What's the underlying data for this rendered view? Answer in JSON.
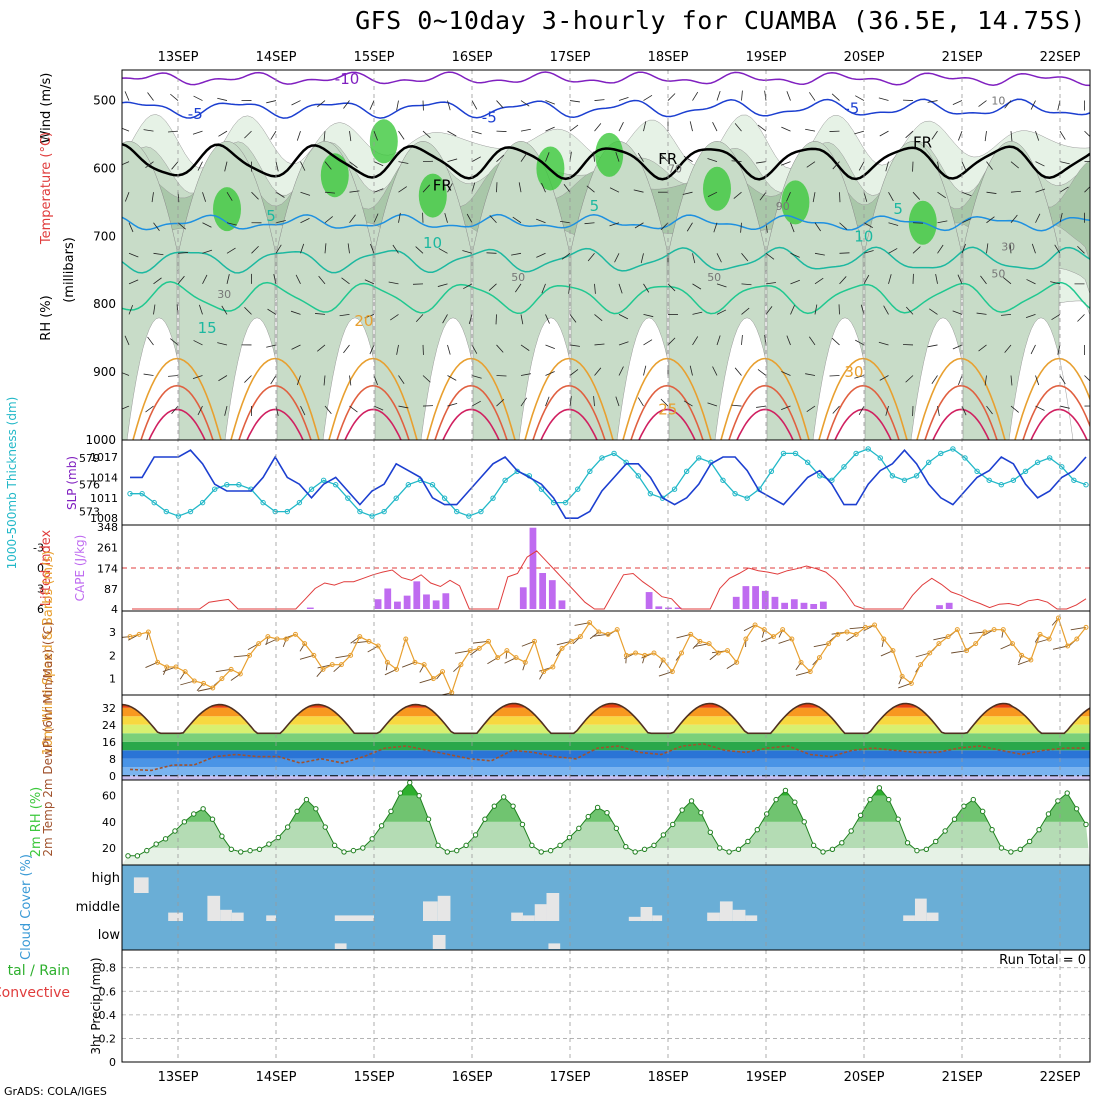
{
  "title": "GFS 0~10day 3-hourly for CUAMBA (36.5E, 14.75S)",
  "footer": "GrADS: COLA/IGES",
  "dates": [
    "13SEP",
    "14SEP",
    "15SEP",
    "16SEP",
    "17SEP",
    "18SEP",
    "19SEP",
    "20SEP",
    "21SEP",
    "22SEP"
  ],
  "colors": {
    "rh_green": "#3cc83c",
    "dewpt_brown": "#a0522d",
    "cape_purple": "#bf6bf0",
    "lifted_red": "#e03c3c",
    "thick_cyan": "#22b8c8",
    "slp_blue": "#1c3fd0",
    "wind_orange": "#e8a030",
    "cloud_bg": "#6aaed6"
  },
  "chart_data": [
    {
      "type": "heatmap",
      "name": "upper-air",
      "ylabel_parts": [
        "Wind (m/s)",
        "Temperature (°C)",
        "RH (%)",
        "(millibars)"
      ],
      "yticks": [
        500,
        600,
        700,
        800,
        900,
        1000
      ],
      "ylim": [
        455,
        1000
      ],
      "temp_labels": [
        {
          "text": "-10",
          "x": 1.6,
          "p": 468
        },
        {
          "text": "-5",
          "x": 0.1,
          "p": 520
        },
        {
          "text": "-5",
          "x": 3.1,
          "p": 525
        },
        {
          "text": "-5",
          "x": 6.8,
          "p": 512
        },
        {
          "text": "FR",
          "x": 2.6,
          "p": 625
        },
        {
          "text": "FR",
          "x": 4.9,
          "p": 586
        },
        {
          "text": "FR",
          "x": 7.5,
          "p": 562
        },
        {
          "text": "5",
          "x": 0.9,
          "p": 670
        },
        {
          "text": "5",
          "x": 4.2,
          "p": 655
        },
        {
          "text": "5",
          "x": 7.3,
          "p": 660
        },
        {
          "text": "10",
          "x": 2.5,
          "p": 710
        },
        {
          "text": "10",
          "x": 6.9,
          "p": 700
        },
        {
          "text": "15",
          "x": 0.2,
          "p": 835
        },
        {
          "text": "20",
          "x": 1.8,
          "p": 825
        },
        {
          "text": "25",
          "x": 4.9,
          "p": 955
        },
        {
          "text": "30",
          "x": 6.8,
          "p": 900
        }
      ],
      "rh_labels": [
        {
          "text": "10",
          "x": 8.3,
          "p": 500
        },
        {
          "text": "30",
          "x": 0.4,
          "p": 785
        },
        {
          "text": "30",
          "x": 8.4,
          "p": 715
        },
        {
          "text": "50",
          "x": 3.4,
          "p": 760
        },
        {
          "text": "50",
          "x": 5.4,
          "p": 760
        },
        {
          "text": "50",
          "x": 8.3,
          "p": 755
        },
        {
          "text": "70",
          "x": 5.0,
          "p": 600
        },
        {
          "text": "90",
          "x": 6.1,
          "p": 655
        }
      ]
    },
    {
      "type": "line",
      "name": "thickness-slp",
      "y_left_label": "1000-500mb Thickness (dm)",
      "y_right_label": "SLP (mb)",
      "left_ticks": [
        573,
        576,
        579
      ],
      "right_ticks": [
        1008,
        1011,
        1014,
        1017
      ],
      "left_ylim": [
        571.5,
        581
      ],
      "right_ylim": [
        1007,
        1019.5
      ],
      "series": [
        {
          "values_key": "thickness",
          "axis": "left"
        },
        {
          "values_key": "slp",
          "axis": "right"
        }
      ],
      "thickness": [
        575,
        575,
        574,
        573,
        572.5,
        573,
        574,
        575.5,
        576,
        576,
        575.5,
        574,
        573,
        573,
        574,
        575.5,
        576.5,
        576,
        574.5,
        573,
        572.5,
        573,
        574.5,
        576,
        576.5,
        576,
        574.5,
        573,
        572.5,
        573,
        574.5,
        576.5,
        577.5,
        577,
        575.5,
        574,
        574,
        575.5,
        577.5,
        579,
        579.5,
        578.5,
        577,
        575,
        574.5,
        575.5,
        577.5,
        579,
        578.5,
        576.5,
        575,
        574.5,
        575.5,
        577.5,
        579.5,
        579.5,
        578.5,
        577,
        576.5,
        578,
        579.5,
        580,
        579,
        577,
        576.5,
        577,
        578.5,
        579.5,
        580,
        579,
        577.5,
        576.5,
        576,
        576.5,
        577.5,
        578.5,
        579,
        578,
        576.5,
        576
      ],
      "slp": [
        1014,
        1014,
        1017,
        1017,
        1017,
        1018,
        1016,
        1013,
        1012,
        1012,
        1012,
        1014,
        1017,
        1014,
        1013,
        1011,
        1013,
        1014,
        1012,
        1010,
        1012,
        1013,
        1016,
        1015,
        1014,
        1011,
        1010,
        1010,
        1012,
        1014,
        1016,
        1017,
        1015,
        1014,
        1013,
        1011,
        1008,
        1008,
        1009,
        1012,
        1014,
        1016,
        1016,
        1014,
        1011,
        1010,
        1011,
        1013,
        1016,
        1017,
        1017,
        1015,
        1012,
        1011,
        1010,
        1012,
        1014,
        1015,
        1013,
        1010,
        1010,
        1013,
        1015,
        1016,
        1018,
        1016,
        1013,
        1011,
        1010,
        1012,
        1014,
        1015,
        1017,
        1016,
        1013,
        1011,
        1012,
        1014,
        1015,
        1017
      ]
    },
    {
      "type": "bar",
      "name": "lifted-cape",
      "y_left_label": "Lifted Index",
      "y_right_label": "CAPE (J/kg)",
      "left_ticks": [
        "-3",
        "0",
        "3",
        "6"
      ],
      "left_tick_values": [
        -3,
        0,
        3,
        6
      ],
      "right_ticks": [
        "4",
        "87",
        "174",
        "261",
        "348"
      ],
      "right_tick_values": [
        4,
        87,
        174,
        261,
        348
      ],
      "left_ylim": [
        6,
        -6
      ],
      "right_ylim": [
        4,
        348
      ],
      "lifted": [
        6,
        6,
        6,
        6,
        6,
        6,
        6,
        6,
        5,
        4.8,
        4.6,
        6,
        6,
        6,
        6,
        6,
        6,
        6,
        4.5,
        3,
        2.2,
        2.5,
        2,
        2,
        1.5,
        1,
        0.6,
        0.3,
        1.4,
        1.8,
        1,
        2.2,
        2.7,
        1.8,
        2.6,
        6,
        6,
        6,
        6,
        1.3,
        0.8,
        -1.6,
        -2.5,
        -1,
        0.5,
        2,
        3.5,
        5,
        6,
        6,
        3.5,
        1,
        0.8,
        2,
        3,
        4.2,
        4.5,
        6,
        6,
        6,
        6,
        3,
        1.5,
        0.8,
        0,
        0.4,
        0.6,
        0.9,
        0.4,
        0.1,
        -0.3,
        0.1,
        0.6,
        1.8,
        3.5,
        5.5,
        6,
        6,
        6,
        6,
        6,
        4,
        2.5,
        1.5,
        2.4,
        3.5,
        4,
        4.7,
        5.2,
        5.8,
        5.3,
        5.2,
        5.5,
        4.8,
        4.6,
        5,
        6,
        6,
        5.4,
        4.5
      ],
      "cape": [
        4,
        4,
        4,
        4,
        4,
        4,
        4,
        4,
        4,
        4,
        4,
        4,
        4,
        4,
        4,
        4,
        4,
        4,
        4,
        10,
        4,
        4,
        4,
        4,
        4,
        4,
        45,
        90,
        35,
        60,
        120,
        65,
        40,
        70,
        4,
        4,
        4,
        4,
        4,
        4,
        4,
        95,
        345,
        155,
        125,
        40,
        4,
        4,
        4,
        4,
        4,
        4,
        4,
        4,
        75,
        15,
        10,
        10,
        4,
        4,
        4,
        4,
        4,
        55,
        100,
        100,
        80,
        55,
        30,
        45,
        30,
        25,
        35,
        4,
        4,
        4,
        4,
        4,
        4,
        4,
        4,
        4,
        4,
        4,
        20,
        30,
        4,
        4,
        4,
        4,
        4,
        4,
        4,
        4,
        4,
        4,
        4,
        4,
        4,
        4
      ]
    },
    {
      "type": "line",
      "name": "wind10m",
      "y_left_label": "10m Wind Speed & Barbs (m/s)",
      "left_ticks": [
        1,
        2,
        3
      ],
      "left_ylim": [
        0.3,
        3.9
      ],
      "values": [
        2.8,
        2.9,
        3,
        1.7,
        1.5,
        1.5,
        1.3,
        0.9,
        0.8,
        0.6,
        1,
        1.4,
        1.2,
        2,
        2.5,
        2.8,
        2.7,
        2.7,
        2.9,
        2.5,
        2,
        1.4,
        1.6,
        1.6,
        2,
        2.8,
        2.6,
        2.4,
        1.7,
        1.4,
        2.7,
        1.7,
        1.6,
        1,
        1.3,
        0.4,
        1.6,
        2.2,
        2.3,
        2.6,
        1.9,
        2.2,
        1.9,
        1.7,
        2.6,
        1.3,
        1.5,
        2.3,
        2.6,
        2.8,
        3.4,
        3,
        2.9,
        3.1,
        2,
        2.1,
        2,
        2.1,
        1.8,
        1.3,
        2.1,
        2.9,
        2.6,
        2.5,
        2.1,
        2.2,
        1.7,
        2.7,
        3.3,
        3.1,
        2.8,
        3.1,
        2.7,
        1.7,
        1.3,
        1.9,
        2.5,
        2.9,
        3,
        2.9,
        3.2,
        3.3,
        2.7,
        2.2,
        1.1,
        0.8,
        1.6,
        2.1,
        2.5,
        2.8,
        3.1,
        2.2,
        2.5,
        3,
        3.1,
        3.1,
        2.5,
        2,
        1.8,
        2.9,
        2.7,
        3.6,
        2.4,
        2.7,
        3.2
      ]
    },
    {
      "type": "area",
      "name": "temp2m",
      "y_left_label": "2m Temp 2m DewPt (6hr Min/Max) (°C)",
      "left_ticks": [
        0,
        8,
        16,
        24,
        32
      ],
      "left_ylim": [
        -2,
        38
      ],
      "days_max": [
        33.5,
        33.5,
        33.5,
        34,
        34,
        34,
        34,
        34,
        34,
        33.5
      ],
      "days_min": [
        20,
        20,
        20,
        20,
        20,
        20,
        20,
        20,
        20,
        20
      ],
      "dew_points": [
        3,
        2.5,
        5,
        5,
        9,
        10,
        9,
        9,
        6,
        8,
        6,
        9,
        13,
        14,
        12,
        10,
        8,
        7,
        12,
        11,
        9,
        8,
        13,
        14,
        11,
        10,
        14,
        15,
        12,
        11,
        13,
        14,
        10,
        9,
        12,
        13,
        12,
        11,
        11,
        13,
        14,
        12,
        10,
        12,
        13,
        13
      ]
    },
    {
      "type": "area",
      "name": "rh2m",
      "y_left_label": "2m RH (%)",
      "left_ticks": [
        20,
        40,
        60
      ],
      "left_ylim": [
        7,
        72
      ],
      "values": [
        14,
        14,
        18,
        23,
        27,
        33,
        40,
        46,
        50,
        42,
        29,
        19,
        17,
        18,
        19,
        23,
        28,
        36,
        48,
        57,
        50,
        36,
        22,
        17,
        18,
        20,
        27,
        37,
        48,
        62,
        70,
        60,
        42,
        22,
        17,
        18,
        22,
        30,
        42,
        52,
        59,
        52,
        38,
        22,
        17,
        18,
        22,
        28,
        35,
        44,
        51,
        47,
        35,
        21,
        17,
        19,
        22,
        30,
        38,
        49,
        56,
        47,
        32,
        20,
        17,
        19,
        25,
        34,
        46,
        57,
        64,
        55,
        40,
        22,
        17,
        19,
        24,
        33,
        45,
        57,
        66,
        57,
        42,
        24,
        18,
        19,
        25,
        33,
        42,
        52,
        57,
        48,
        34,
        20,
        17,
        19,
        25,
        34,
        46,
        56,
        62,
        50,
        38
      ]
    },
    {
      "type": "bar",
      "name": "cloud-cover",
      "ylabel": "Cloud Cover (%)",
      "level_labels": [
        "high",
        "middle",
        "low"
      ],
      "high": [
        {
          "x": -0.45,
          "w": 0.15,
          "v": 0.6
        }
      ],
      "middle": [
        {
          "x": -0.1,
          "w": 0.15,
          "v": 0.3
        },
        {
          "x": 0.3,
          "w": 0.13,
          "v": 0.9
        },
        {
          "x": 0.43,
          "w": 0.12,
          "v": 0.4
        },
        {
          "x": 0.55,
          "w": 0.12,
          "v": 0.3
        },
        {
          "x": 0.9,
          "w": 0.1,
          "v": 0.2
        },
        {
          "x": 1.6,
          "w": 0.4,
          "v": 0.2
        },
        {
          "x": 2.5,
          "w": 0.15,
          "v": 0.7
        },
        {
          "x": 2.65,
          "w": 0.13,
          "v": 0.9
        },
        {
          "x": 3.4,
          "w": 0.12,
          "v": 0.3
        },
        {
          "x": 3.52,
          "w": 0.12,
          "v": 0.2
        },
        {
          "x": 3.64,
          "w": 0.12,
          "v": 0.6
        },
        {
          "x": 3.76,
          "w": 0.13,
          "v": 1
        },
        {
          "x": 4.6,
          "w": 0.12,
          "v": 0.15
        },
        {
          "x": 4.72,
          "w": 0.12,
          "v": 0.5
        },
        {
          "x": 4.84,
          "w": 0.1,
          "v": 0.2
        },
        {
          "x": 5.4,
          "w": 0.13,
          "v": 0.3
        },
        {
          "x": 5.53,
          "w": 0.13,
          "v": 0.7
        },
        {
          "x": 5.66,
          "w": 0.13,
          "v": 0.4
        },
        {
          "x": 5.79,
          "w": 0.12,
          "v": 0.2
        },
        {
          "x": 7.4,
          "w": 0.12,
          "v": 0.2
        },
        {
          "x": 7.52,
          "w": 0.12,
          "v": 0.8
        },
        {
          "x": 7.64,
          "w": 0.12,
          "v": 0.3
        }
      ],
      "low": [
        {
          "x": 1.6,
          "w": 0.12,
          "v": 0.2
        },
        {
          "x": 2.6,
          "w": 0.13,
          "v": 0.5
        },
        {
          "x": 3.78,
          "w": 0.12,
          "v": 0.2
        }
      ]
    },
    {
      "type": "line",
      "name": "precip",
      "y_left_label": "3hr Precip (mm)",
      "side_label_top": "tal / Rain",
      "side_label_bottom": "Convective",
      "left_ticks": [
        "0",
        "0.2",
        "0.4",
        "0.6",
        "0.8"
      ],
      "left_tick_values": [
        0,
        0.2,
        0.4,
        0.6,
        0.8
      ],
      "left_ylim": [
        0,
        0.95
      ],
      "run_total": "Run Total = 0"
    }
  ]
}
